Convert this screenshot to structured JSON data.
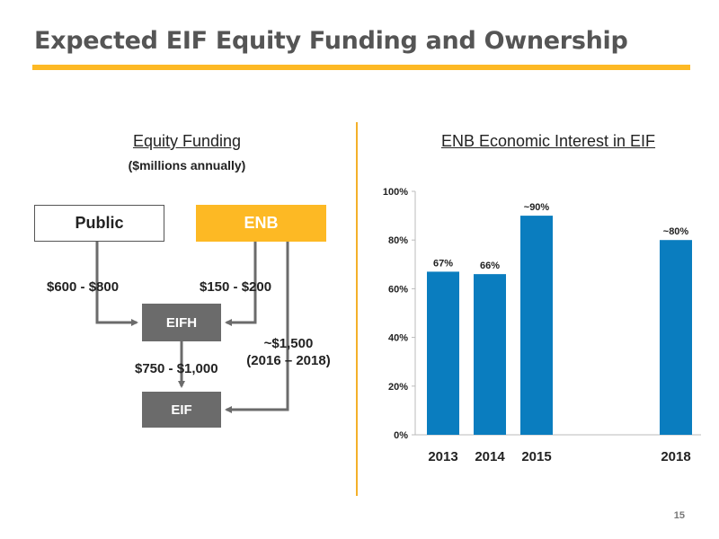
{
  "page": {
    "title": "Expected EIF Equity Funding and Ownership",
    "page_number": "15",
    "colors": {
      "accent": "#FDB924",
      "bar": "#0A7DBF",
      "box_dark": "#6B6B6B"
    }
  },
  "funding": {
    "heading": "Equity Funding",
    "subheading": "($millions annually)",
    "boxes": {
      "public": "Public",
      "enb": "ENB",
      "eifh": "EIFH",
      "eif": "EIF"
    },
    "labels": {
      "public_to_eifh": "$600 - $800",
      "enb_to_eifh": "$150 - $200",
      "eifh_to_eif": "$750 - $1,000",
      "enb_to_eif_line1": "~$1,500",
      "enb_to_eif_line2": "(2016 – 2018)"
    }
  },
  "chart_data": {
    "type": "bar",
    "title": "ENB Economic Interest in EIF",
    "categories": [
      "2013",
      "2014",
      "2015",
      "2018"
    ],
    "values": [
      67,
      66,
      90,
      80
    ],
    "data_labels": [
      "67%",
      "66%",
      "~90%",
      "~80%"
    ],
    "ylim": [
      0,
      100
    ],
    "yticks": [
      0,
      20,
      40,
      60,
      80,
      100
    ],
    "ytick_labels": [
      "0%",
      "20%",
      "40%",
      "60%",
      "80%",
      "100%"
    ],
    "xlabel": "",
    "ylabel": "",
    "grid": false
  }
}
